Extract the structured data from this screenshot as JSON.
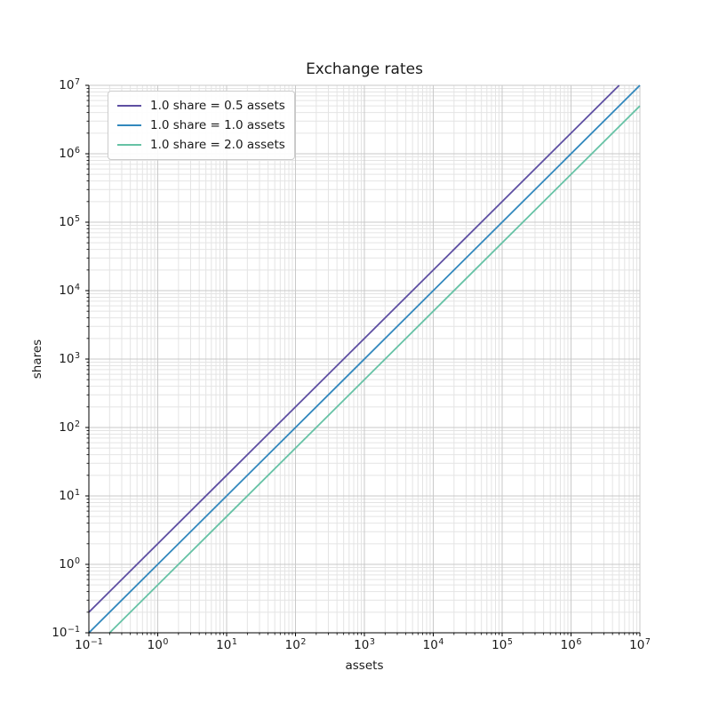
{
  "chart_data": {
    "type": "line",
    "title": "Exchange rates",
    "xlabel": "assets",
    "ylabel": "shares",
    "xscale": "log",
    "yscale": "log",
    "xlim": [
      0.1,
      10000000
    ],
    "ylim": [
      0.1,
      10000000
    ],
    "x_tick_labels": [
      "10⁻¹",
      "10⁰",
      "10¹",
      "10²",
      "10³",
      "10⁴",
      "10⁵",
      "10⁶",
      "10⁷"
    ],
    "y_tick_labels": [
      "10⁻¹",
      "10⁰",
      "10¹",
      "10²",
      "10³",
      "10⁴",
      "10⁵",
      "10⁶",
      "10⁷"
    ],
    "x_tick_exponents": [
      -1,
      0,
      1,
      2,
      3,
      4,
      5,
      6,
      7
    ],
    "y_tick_exponents": [
      -1,
      0,
      1,
      2,
      3,
      4,
      5,
      6,
      7
    ],
    "grid": {
      "major": true,
      "minor": true,
      "major_color": "#c9c9c9",
      "minor_color": "#e4e4e4"
    },
    "axis_color": "#000000",
    "legend_position": "upper-left",
    "series": [
      {
        "name": "1.0 share = 0.5 assets",
        "color": "#5e4fa2",
        "rate_assets_per_share": 0.5,
        "points": [
          [
            0.1,
            0.2
          ],
          [
            5000000,
            10000000
          ]
        ]
      },
      {
        "name": "1.0 share = 1.0 assets",
        "color": "#3288bd",
        "rate_assets_per_share": 1.0,
        "points": [
          [
            0.1,
            0.1
          ],
          [
            10000000,
            10000000
          ]
        ]
      },
      {
        "name": "1.0 share = 2.0 assets",
        "color": "#66c2a5",
        "rate_assets_per_share": 2.0,
        "points": [
          [
            0.2,
            0.1
          ],
          [
            10000000,
            5000000
          ]
        ]
      }
    ]
  }
}
